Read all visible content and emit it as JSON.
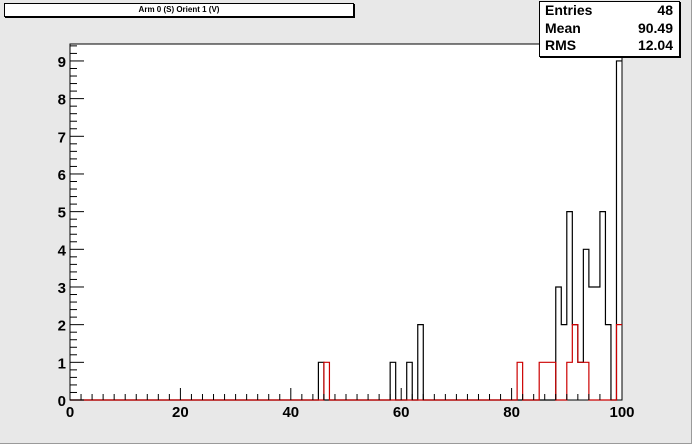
{
  "title": "Arm 0 (S) Orient 1 (V)",
  "stats": {
    "rows": [
      {
        "label": "Entries",
        "value": "48"
      },
      {
        "label": "Mean",
        "value": "90.49"
      },
      {
        "label": "RMS",
        "value": "12.04"
      }
    ]
  },
  "colors": {
    "canvas": "#e8e8e8",
    "frame": "#ffffff",
    "black_series": "#000000",
    "red_series": "#cc0000"
  },
  "chart_data": {
    "type": "histogram",
    "title": "Arm 0 (S) Orient 1 (V)",
    "xlabel": "",
    "ylabel": "",
    "xlim": [
      0,
      100
    ],
    "ylim": [
      0,
      9.45
    ],
    "bin_width": 1,
    "xticks": [
      0,
      20,
      40,
      60,
      80,
      100
    ],
    "yticks": [
      0,
      1,
      2,
      3,
      4,
      5,
      6,
      7,
      8,
      9
    ],
    "grid": false,
    "legend": "none",
    "series": [
      {
        "color": "#000000",
        "bins": [
          {
            "x": 45,
            "y": 1
          },
          {
            "x": 58,
            "y": 1
          },
          {
            "x": 61,
            "y": 1
          },
          {
            "x": 63,
            "y": 2
          },
          {
            "x": 88,
            "y": 3
          },
          {
            "x": 89,
            "y": 2
          },
          {
            "x": 90,
            "y": 5
          },
          {
            "x": 91,
            "y": 2
          },
          {
            "x": 92,
            "y": 1
          },
          {
            "x": 93,
            "y": 4
          },
          {
            "x": 94,
            "y": 3
          },
          {
            "x": 95,
            "y": 3
          },
          {
            "x": 96,
            "y": 5
          },
          {
            "x": 97,
            "y": 2
          },
          {
            "x": 99,
            "y": 9
          }
        ]
      },
      {
        "color": "#cc0000",
        "bins": [
          {
            "x": 46,
            "y": 1
          },
          {
            "x": 81,
            "y": 1
          },
          {
            "x": 85,
            "y": 1
          },
          {
            "x": 86,
            "y": 1
          },
          {
            "x": 87,
            "y": 1
          },
          {
            "x": 90,
            "y": 1
          },
          {
            "x": 91,
            "y": 2
          },
          {
            "x": 92,
            "y": 1
          },
          {
            "x": 93,
            "y": 1
          },
          {
            "x": 99,
            "y": 2
          }
        ]
      }
    ]
  }
}
